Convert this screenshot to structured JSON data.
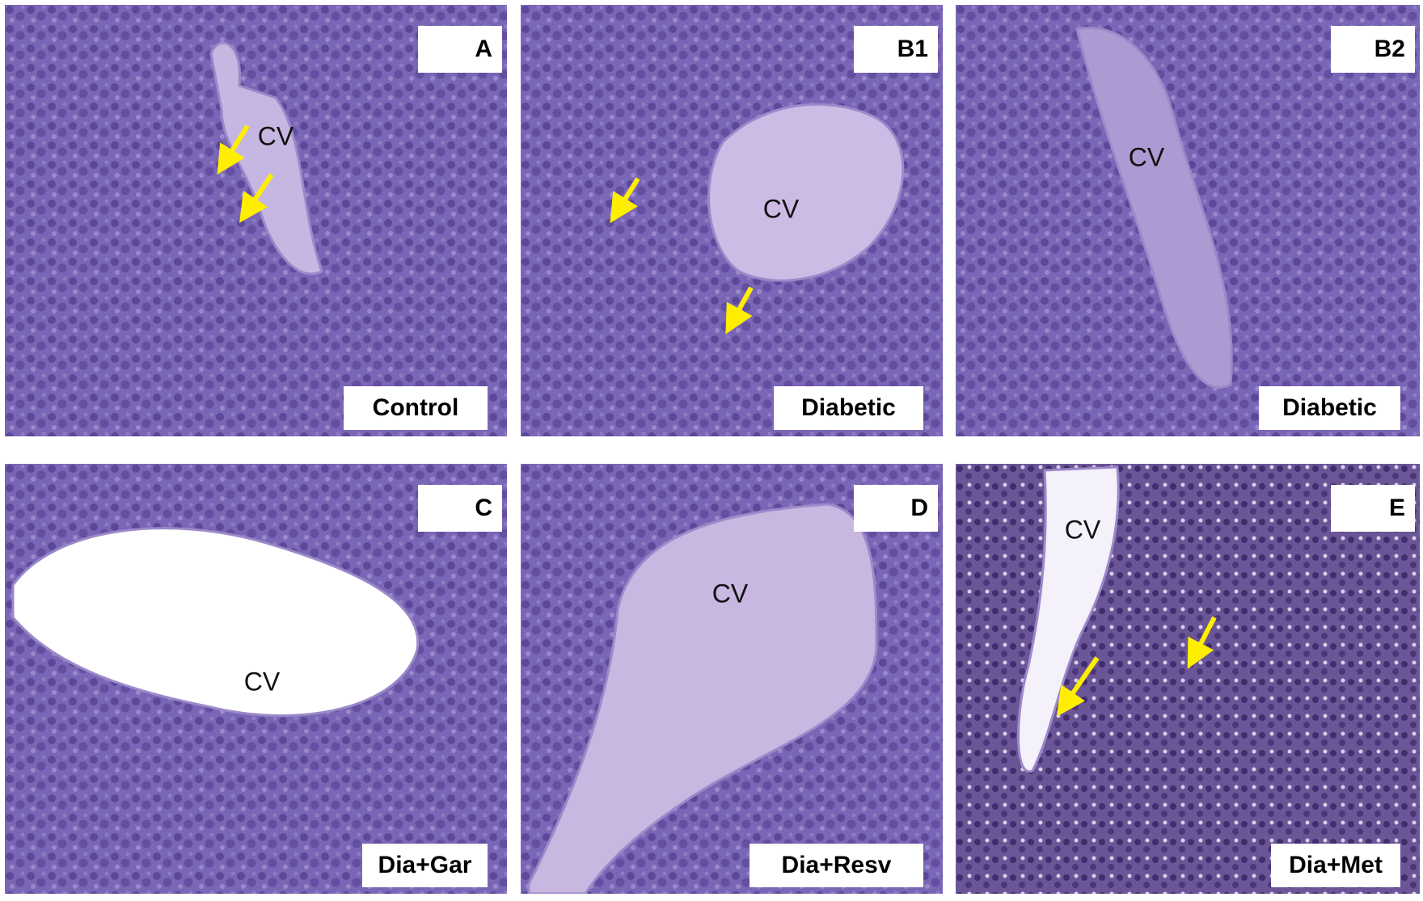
{
  "panels": [
    {
      "letter": "A",
      "group": "Control",
      "vein_label": "CV"
    },
    {
      "letter": "B1",
      "group": "Diabetic",
      "vein_label": "CV"
    },
    {
      "letter": "B2",
      "group": "Diabetic",
      "vein_label": "CV"
    },
    {
      "letter": "C",
      "group": "Dia+Gar",
      "vein_label": "CV"
    },
    {
      "letter": "D",
      "group": "Dia+Resv",
      "vein_label": "CV"
    },
    {
      "letter": "E",
      "group": "Dia+Met",
      "vein_label": "CV"
    }
  ]
}
